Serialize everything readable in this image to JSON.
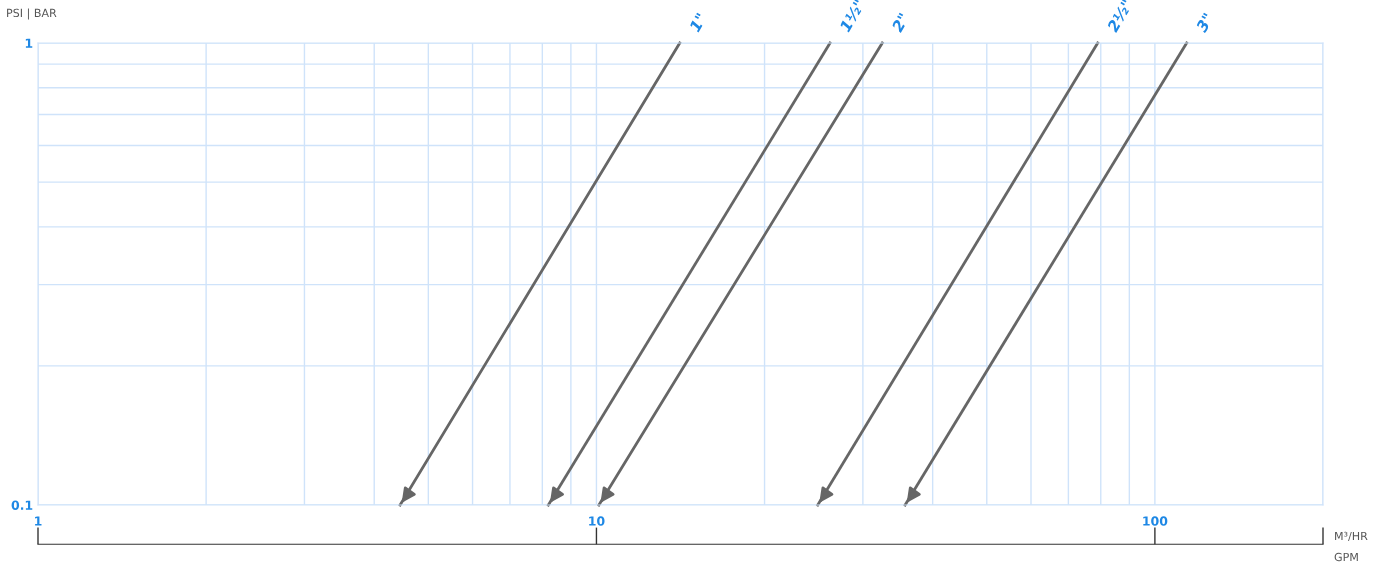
{
  "chart_data": {
    "type": "line",
    "ylabel": "PSI | BAR",
    "xlabel": "M³/HR",
    "annotations": [
      "GPM"
    ],
    "log": "xy",
    "grid": true,
    "marker": "none",
    "line_style": "solid",
    "xlim": [
      1,
      200
    ],
    "ylim": [
      0.1,
      1
    ],
    "xticks": [
      1,
      {
        "value": 2,
        "label": null
      },
      {
        "value": 3,
        "label": null
      },
      {
        "value": 4,
        "label": null
      },
      {
        "value": 5,
        "label": null
      },
      {
        "value": 6,
        "label": null
      },
      {
        "value": 7,
        "label": null
      },
      {
        "value": 8,
        "label": null
      },
      {
        "value": 9,
        "label": null
      },
      10,
      {
        "value": 20,
        "label": null
      },
      {
        "value": 30,
        "label": null
      },
      {
        "value": 40,
        "label": null
      },
      {
        "value": 50,
        "label": null
      },
      {
        "value": 60,
        "label": null
      },
      {
        "value": 70,
        "label": null
      },
      {
        "value": 80,
        "label": null
      },
      {
        "value": 90,
        "label": null
      },
      100,
      {
        "value": 200,
        "label": null
      }
    ],
    "yticks": [
      0.1,
      {
        "value": 0.2,
        "label": null
      },
      {
        "value": 0.3,
        "label": null
      },
      {
        "value": 0.4,
        "label": null
      },
      {
        "value": 0.5,
        "label": null
      },
      {
        "value": 0.6,
        "label": null
      },
      {
        "value": 0.7,
        "label": null
      },
      {
        "value": 0.8,
        "label": null
      },
      {
        "value": 0.9,
        "label": null
      },
      1
    ],
    "series": [
      {
        "name": "1\"",
        "color": "#666666",
        "x": [
          14.1,
          4.45
        ],
        "values": [
          1,
          0.1
        ]
      },
      {
        "name": "1½\"",
        "color": "#666666",
        "x": [
          26.2,
          8.2
        ],
        "values": [
          1,
          0.1
        ]
      },
      {
        "name": "2\"",
        "color": "#666666",
        "x": [
          32.5,
          10.1
        ],
        "values": [
          1,
          0.1
        ]
      },
      {
        "name": "2½\"",
        "color": "#666666",
        "x": [
          79,
          24.9
        ],
        "values": [
          1,
          0.1
        ]
      },
      {
        "name": "3\"",
        "color": "#666666",
        "x": [
          114,
          35.7
        ],
        "values": [
          1,
          0.1
        ]
      }
    ]
  }
}
